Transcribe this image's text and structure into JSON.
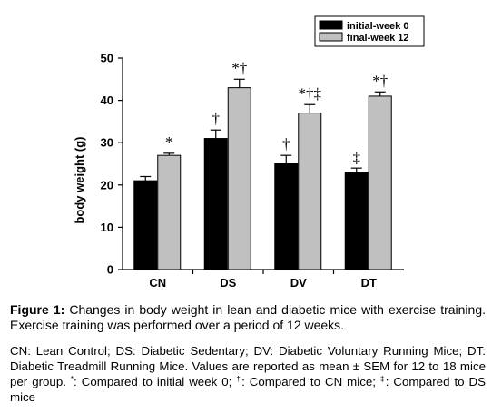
{
  "chart_data": {
    "type": "bar",
    "categories": [
      "CN",
      "DS",
      "DV",
      "DT"
    ],
    "series": [
      {
        "name": "initial-week 0",
        "color": "#000000",
        "values": [
          21,
          31,
          25,
          23
        ],
        "errors": [
          1.0,
          2.0,
          2.0,
          1.0
        ],
        "annotations": [
          "",
          "†",
          "†",
          "‡"
        ]
      },
      {
        "name": "final-week 12",
        "color": "#c0c0c0",
        "values": [
          27,
          43,
          37,
          41
        ],
        "errors": [
          0.5,
          2.0,
          2.0,
          1.0
        ],
        "annotations": [
          "*",
          "*†",
          "*†‡",
          "*†"
        ]
      }
    ],
    "title": "",
    "xlabel": "",
    "ylabel": "body weight (g)",
    "ylim": [
      0,
      50
    ],
    "yticks": [
      0,
      10,
      20,
      30,
      40,
      50
    ],
    "grid": false,
    "legend": "top-right"
  },
  "caption": {
    "label": "Figure 1:",
    "text": " Changes in body weight in lean and diabetic mice with exercise training. Exercise training was performed over a period of 12 weeks."
  },
  "note": {
    "part1": "CN: Lean Control; DS: Diabetic Sedentary; DV: Diabetic Voluntary Running Mice; DT: Diabetic Treadmill Running Mice. Values are reported as mean ± SEM for 12 to 18 mice per group. ",
    "sym1": "*",
    "part2": ": Compared to initial week 0; ",
    "sym2": "†",
    "part3": ": Compared to CN mice; ",
    "sym3": "‡",
    "part4": ": Compared to DS mice"
  }
}
